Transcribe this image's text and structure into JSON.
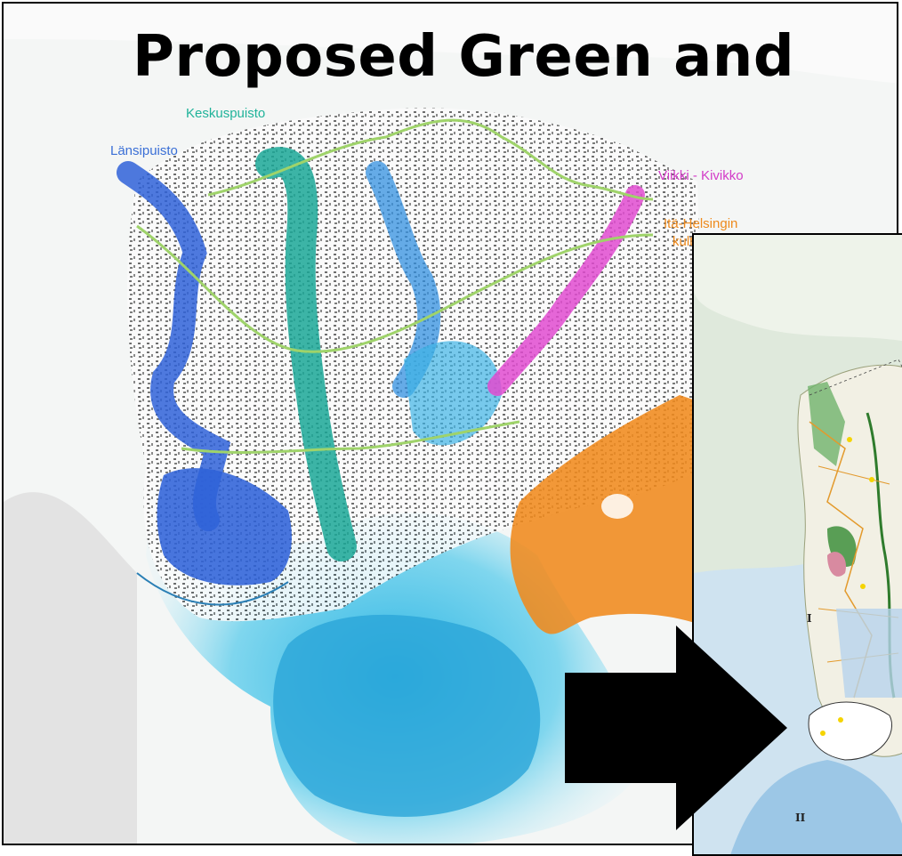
{
  "title": "Proposed Green and",
  "map_labels": {
    "keskuspuisto": "Keskuspuisto",
    "lansipuisto": "Länsipuisto",
    "viikki": "Viikki - Kivikko",
    "ita_helsinki": "Itä-Helsingin",
    "kult": "kult"
  },
  "inset_labels": {
    "roman_1": "I",
    "roman_2": "II"
  },
  "colors": {
    "lansipuisto": "#2f62d8",
    "keskuspuisto": "#1aa797",
    "viikki": "#e04bd0",
    "ita_helsinki": "#f08a1c",
    "sea": "#54c6e6",
    "greenway": "#9fd36a",
    "arrow": "#000000"
  },
  "icons": {
    "arrow": "right-arrow-icon"
  }
}
